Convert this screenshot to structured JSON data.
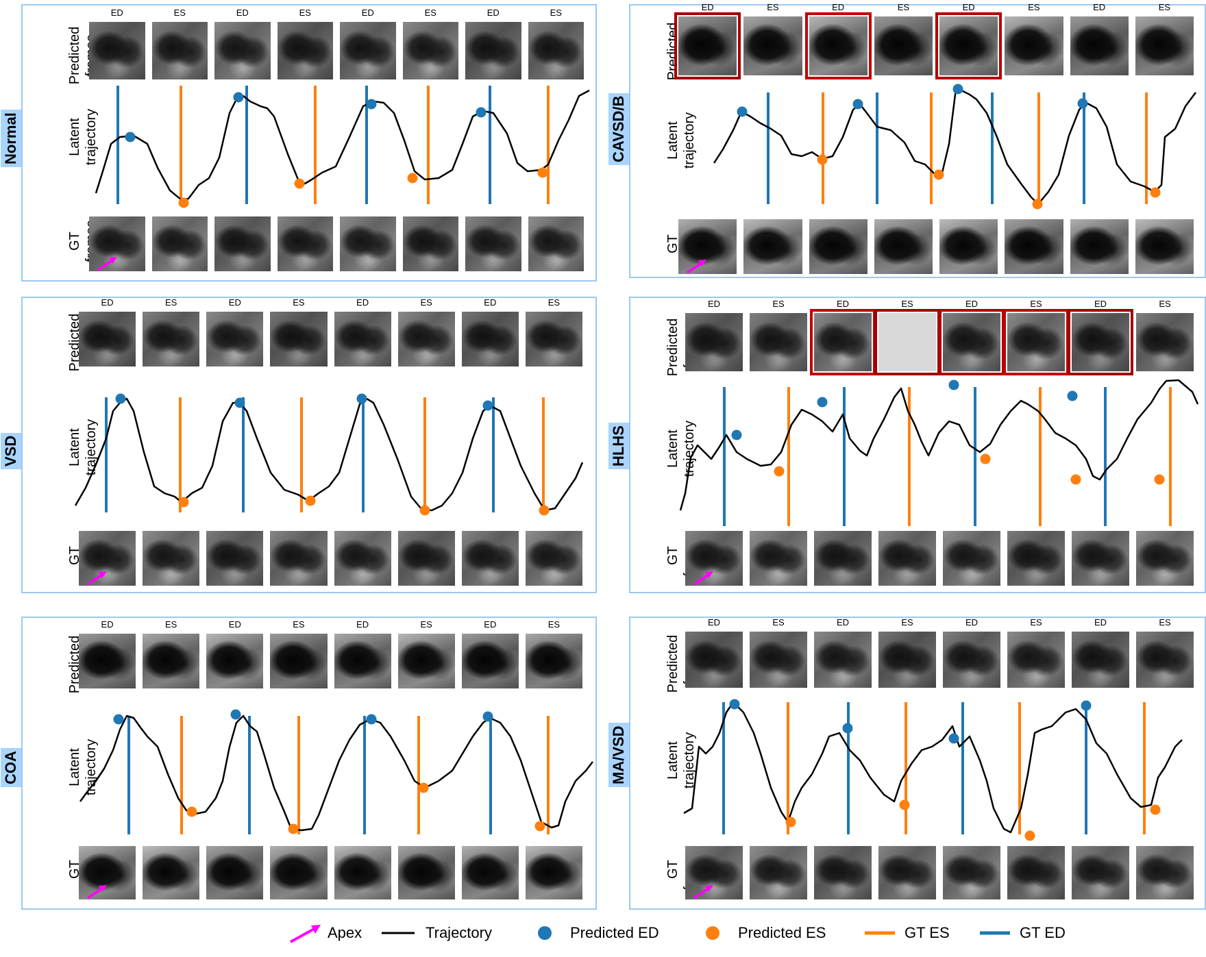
{
  "labels": {
    "predicted_frames": "Predicted frames",
    "latent_trajectory": "Latent trajectory",
    "gt_frames": "GT frames",
    "ed": "ED",
    "es": "ES"
  },
  "colors": {
    "trajectory": "#000000",
    "predicted_ed": "#1f77b4",
    "predicted_es": "#ff7f0e",
    "gt_es": "#ff7f0e",
    "gt_ed": "#1f77b4",
    "apex": "#ff00ff",
    "panel_border": "#9cc8f0",
    "class_label_bg": "#a9d4fb",
    "error_box": "#c00000"
  },
  "panels": [
    {
      "class": "Normal"
    },
    {
      "class": "CAVSD/B"
    },
    {
      "class": "VSD"
    },
    {
      "class": "HLHS"
    },
    {
      "class": "COA"
    },
    {
      "class": "MA/VSD"
    }
  ],
  "phase_sequence": [
    "ED",
    "ES",
    "ED",
    "ES",
    "ED",
    "ES",
    "ED",
    "ES"
  ],
  "legend": {
    "apex": "Apex",
    "trajectory": "Trajectory",
    "predicted_ed": "Predicted ED",
    "predicted_es": "Predicted ES",
    "gt_es": "GT ES",
    "gt_ed": "GT ED"
  }
}
